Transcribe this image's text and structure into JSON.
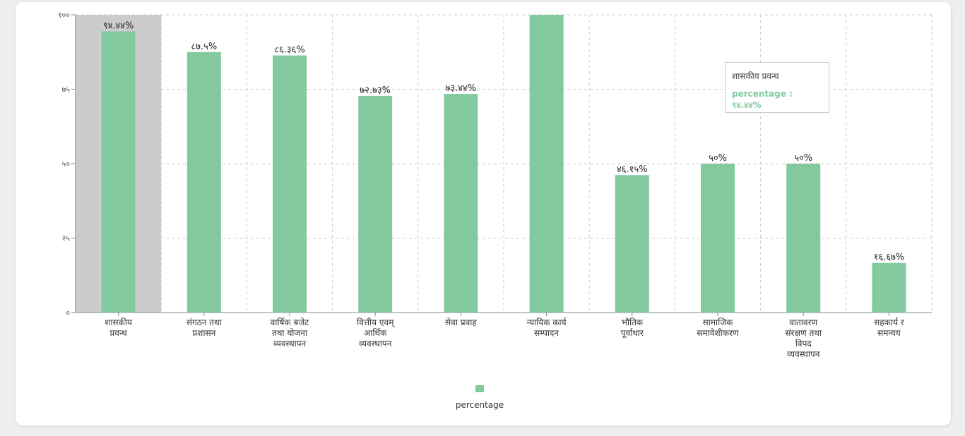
{
  "chart_data": {
    "type": "bar",
    "categories": [
      [
        "शासकीय",
        "प्रवन्ध"
      ],
      [
        "संगठन तथा",
        "प्रशासन"
      ],
      [
        "वार्षिक बजेट",
        "तथा योजना",
        "व्यवस्थापन"
      ],
      [
        "वित्तीय एवम्",
        "आर्थिक",
        "व्यवस्थापन"
      ],
      [
        "सेवा प्रवाह"
      ],
      [
        "न्यायिक कार्य",
        "सम्पादन"
      ],
      [
        "भौतिक",
        "पूर्वाधार"
      ],
      [
        "सामाजिक",
        "समावेशीकरण"
      ],
      [
        "वातावरण",
        "संरक्षण तथा",
        "विपद",
        "व्यवस्थापन"
      ],
      [
        "सहकार्य र",
        "समन्वय"
      ]
    ],
    "series": [
      {
        "name": "percentage",
        "color": "#82ca9d",
        "values": [
          94.44,
          87.5,
          86.36,
          72.73,
          73.44,
          100,
          46.15,
          50,
          50,
          16.67
        ],
        "labels": [
          "९४.४४%",
          "८७.५%",
          "८६.३६%",
          "७२.७३%",
          "७३.४४%",
          "",
          "४६.१५%",
          "५०%",
          "५०%",
          "१६.६७%"
        ]
      }
    ],
    "ylim": [
      0,
      100
    ],
    "yticks": [
      0,
      25,
      50,
      75,
      100
    ],
    "ytick_labels": [
      "०",
      "२५",
      "५०",
      "७५",
      "१००"
    ],
    "grid": true,
    "legend": {
      "position": "bottom",
      "label": "percentage"
    },
    "highlighted_index": 0,
    "tooltip": {
      "title": "शासकीय प्रवन्ध",
      "value_text": "percentage : ९४.४४%"
    }
  }
}
